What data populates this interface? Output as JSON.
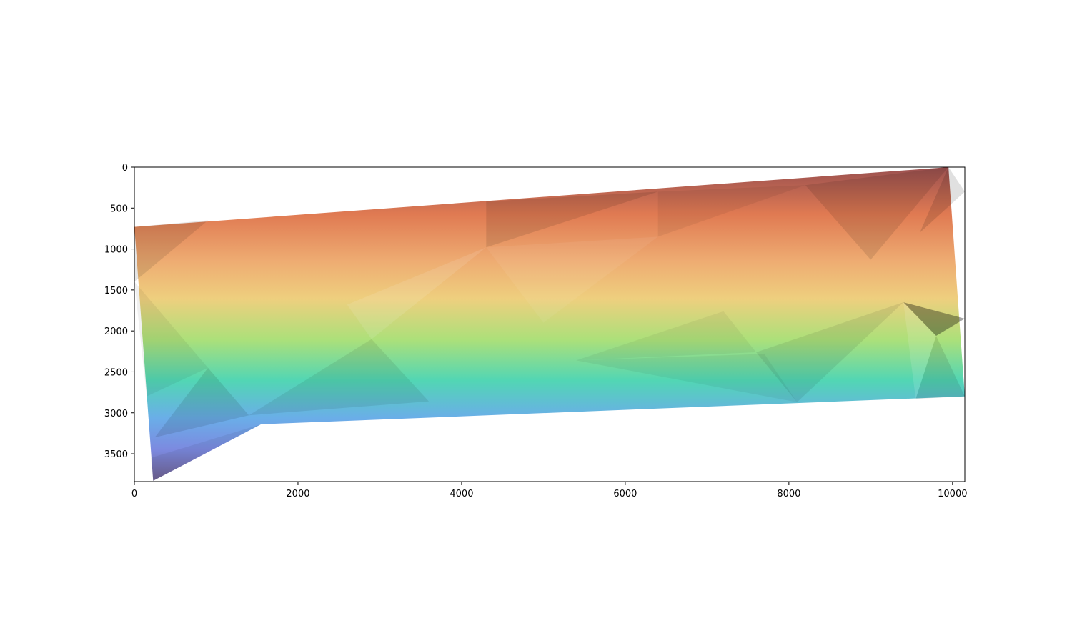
{
  "chart_data": {
    "type": "heatmap",
    "description_role": "shaded triangulated surface image (top-down raster view), no title or axis labels printed",
    "title": "",
    "xlabel": "",
    "ylabel": "",
    "xlim": [
      0,
      10150
    ],
    "ylim": [
      3840,
      0
    ],
    "y_axis_inverted": true,
    "grid": false,
    "colormap": "turbo-like (dark red / orange / yellow / green / cyan / blue / purple)",
    "x_ticks": [
      {
        "value": 0,
        "label": "0"
      },
      {
        "value": 2000,
        "label": "2000"
      },
      {
        "value": 4000,
        "label": "4000"
      },
      {
        "value": 6000,
        "label": "6000"
      },
      {
        "value": 8000,
        "label": "8000"
      },
      {
        "value": 10000,
        "label": "10000"
      }
    ],
    "y_ticks": [
      {
        "value": 0,
        "label": "0"
      },
      {
        "value": 500,
        "label": "500"
      },
      {
        "value": 1000,
        "label": "1000"
      },
      {
        "value": 1500,
        "label": "1500"
      },
      {
        "value": 2000,
        "label": "2000"
      },
      {
        "value": 2500,
        "label": "2500"
      },
      {
        "value": 3000,
        "label": "3000"
      },
      {
        "value": 3500,
        "label": "3500"
      }
    ],
    "surface_outline": [
      [
        0,
        730
      ],
      [
        9950,
        0
      ],
      [
        10150,
        2800
      ],
      [
        1550,
        3140
      ],
      [
        230,
        3830
      ],
      [
        0,
        730
      ]
    ],
    "color_bands": [
      {
        "t": 0.0,
        "color": "#9a5050"
      },
      {
        "t": 0.15,
        "color": "#e07a52"
      },
      {
        "t": 0.3,
        "color": "#eeac72"
      },
      {
        "t": 0.42,
        "color": "#eecf7e"
      },
      {
        "t": 0.55,
        "color": "#ace07a"
      },
      {
        "t": 0.68,
        "color": "#52d6b4"
      },
      {
        "t": 0.8,
        "color": "#6aaee8"
      },
      {
        "t": 0.9,
        "color": "#7c8ae0"
      },
      {
        "t": 1.0,
        "color": "#6e6090"
      }
    ]
  }
}
